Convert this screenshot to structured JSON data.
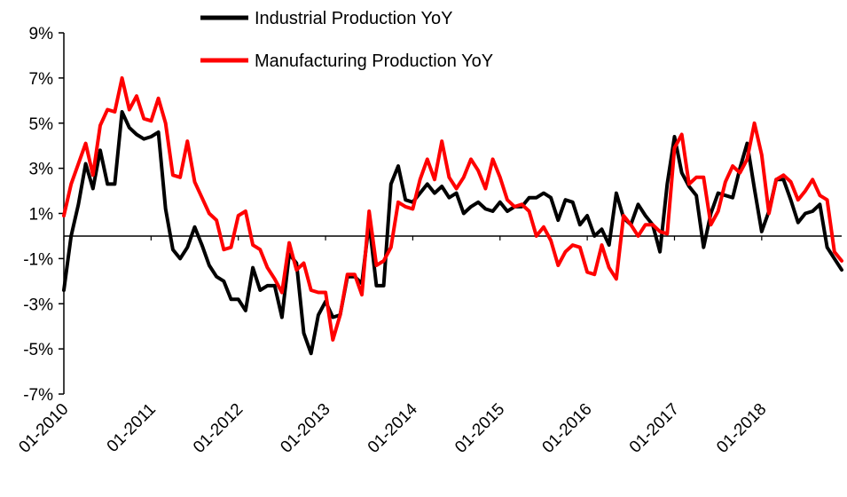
{
  "chart_data": {
    "type": "line",
    "title": "",
    "xlabel": "",
    "ylabel": "",
    "ylim": [
      -7,
      9
    ],
    "xlim": [
      "2010-01",
      "2018-10"
    ],
    "grid": false,
    "legend_position": "top-center",
    "yticks": [
      {
        "value": 9,
        "label": "9%"
      },
      {
        "value": 7,
        "label": "7%"
      },
      {
        "value": 5,
        "label": "5%"
      },
      {
        "value": 3,
        "label": "3%"
      },
      {
        "value": 1,
        "label": "1%"
      },
      {
        "value": -1,
        "label": "-1%"
      },
      {
        "value": -3,
        "label": "-3%"
      },
      {
        "value": -5,
        "label": "-5%"
      },
      {
        "value": -7,
        "label": "-7%"
      }
    ],
    "xticks": [
      {
        "date": "2010-01",
        "label": "01-2010"
      },
      {
        "date": "2011-01",
        "label": "01-2011"
      },
      {
        "date": "2012-01",
        "label": "01-2012"
      },
      {
        "date": "2013-01",
        "label": "01-2013"
      },
      {
        "date": "2014-01",
        "label": "01-2014"
      },
      {
        "date": "2015-01",
        "label": "01-2015"
      },
      {
        "date": "2016-01",
        "label": "01-2016"
      },
      {
        "date": "2017-01",
        "label": "01-2017"
      },
      {
        "date": "2018-01",
        "label": "01-2018"
      }
    ],
    "series": [
      {
        "name": "Industrial Production YoY",
        "color": "#000000",
        "points": [
          [
            "2010-01",
            -2.4
          ],
          [
            "2010-02",
            0.0
          ],
          [
            "2010-03",
            1.4
          ],
          [
            "2010-04",
            3.2
          ],
          [
            "2010-05",
            2.1
          ],
          [
            "2010-06",
            3.8
          ],
          [
            "2010-07",
            2.3
          ],
          [
            "2010-08",
            2.3
          ],
          [
            "2010-09",
            5.5
          ],
          [
            "2010-10",
            4.8
          ],
          [
            "2010-11",
            4.5
          ],
          [
            "2010-12",
            4.3
          ],
          [
            "2011-01",
            4.4
          ],
          [
            "2011-02",
            4.6
          ],
          [
            "2011-03",
            1.2
          ],
          [
            "2011-04",
            -0.6
          ],
          [
            "2011-05",
            -1.0
          ],
          [
            "2011-06",
            -0.5
          ],
          [
            "2011-07",
            0.4
          ],
          [
            "2011-08",
            -0.4
          ],
          [
            "2011-09",
            -1.3
          ],
          [
            "2011-10",
            -1.8
          ],
          [
            "2011-11",
            -2.0
          ],
          [
            "2011-12",
            -2.8
          ],
          [
            "2012-01",
            -2.8
          ],
          [
            "2012-02",
            -3.3
          ],
          [
            "2012-03",
            -1.4
          ],
          [
            "2012-04",
            -2.4
          ],
          [
            "2012-05",
            -2.2
          ],
          [
            "2012-06",
            -2.2
          ],
          [
            "2012-07",
            -3.6
          ],
          [
            "2012-08",
            -0.8
          ],
          [
            "2012-09",
            -1.2
          ],
          [
            "2012-10",
            -4.3
          ],
          [
            "2012-11",
            -5.2
          ],
          [
            "2012-12",
            -3.5
          ],
          [
            "2013-01",
            -2.9
          ],
          [
            "2013-02",
            -3.6
          ],
          [
            "2013-03",
            -3.5
          ],
          [
            "2013-04",
            -1.8
          ],
          [
            "2013-05",
            -1.8
          ],
          [
            "2013-06",
            -2.1
          ],
          [
            "2013-07",
            0.6
          ],
          [
            "2013-08",
            -2.2
          ],
          [
            "2013-09",
            -2.2
          ],
          [
            "2013-10",
            2.3
          ],
          [
            "2013-11",
            3.1
          ],
          [
            "2013-12",
            1.6
          ],
          [
            "2014-01",
            1.5
          ],
          [
            "2014-02",
            1.9
          ],
          [
            "2014-03",
            2.3
          ],
          [
            "2014-04",
            1.9
          ],
          [
            "2014-05",
            2.2
          ],
          [
            "2014-06",
            1.7
          ],
          [
            "2014-07",
            1.9
          ],
          [
            "2014-08",
            1.0
          ],
          [
            "2014-09",
            1.3
          ],
          [
            "2014-10",
            1.5
          ],
          [
            "2014-11",
            1.2
          ],
          [
            "2014-12",
            1.1
          ],
          [
            "2015-01",
            1.5
          ],
          [
            "2015-02",
            1.1
          ],
          [
            "2015-03",
            1.3
          ],
          [
            "2015-04",
            1.3
          ],
          [
            "2015-05",
            1.7
          ],
          [
            "2015-06",
            1.7
          ],
          [
            "2015-07",
            1.9
          ],
          [
            "2015-08",
            1.7
          ],
          [
            "2015-09",
            0.7
          ],
          [
            "2015-10",
            1.6
          ],
          [
            "2015-11",
            1.5
          ],
          [
            "2015-12",
            0.5
          ],
          [
            "2016-01",
            0.9
          ],
          [
            "2016-02",
            0.0
          ],
          [
            "2016-03",
            0.3
          ],
          [
            "2016-04",
            -0.4
          ],
          [
            "2016-05",
            1.9
          ],
          [
            "2016-06",
            0.8
          ],
          [
            "2016-07",
            0.5
          ],
          [
            "2016-08",
            1.4
          ],
          [
            "2016-09",
            0.9
          ],
          [
            "2016-10",
            0.5
          ],
          [
            "2016-11",
            -0.7
          ],
          [
            "2016-12",
            2.3
          ],
          [
            "2017-01",
            4.4
          ],
          [
            "2017-02",
            2.8
          ],
          [
            "2017-03",
            2.2
          ],
          [
            "2017-04",
            1.8
          ],
          [
            "2017-05",
            -0.5
          ],
          [
            "2017-06",
            1.0
          ],
          [
            "2017-07",
            1.9
          ],
          [
            "2017-08",
            1.8
          ],
          [
            "2017-09",
            1.7
          ],
          [
            "2017-10",
            3.0
          ],
          [
            "2017-11",
            4.1
          ],
          [
            "2017-12",
            2.1
          ],
          [
            "2018-01",
            0.2
          ],
          [
            "2018-02",
            1.1
          ],
          [
            "2018-03",
            2.5
          ],
          [
            "2018-04",
            2.5
          ],
          [
            "2018-05",
            1.6
          ],
          [
            "2018-06",
            0.6
          ],
          [
            "2018-07",
            1.0
          ],
          [
            "2018-08",
            1.1
          ],
          [
            "2018-09",
            1.4
          ],
          [
            "2018-10",
            -0.5
          ],
          [
            "2018-11",
            -1.0
          ],
          [
            "2018-12",
            -1.5
          ]
        ]
      },
      {
        "name": "Manufacturing Production YoY",
        "color": "#ff0000",
        "points": [
          [
            "2010-01",
            0.9
          ],
          [
            "2010-02",
            2.3
          ],
          [
            "2010-03",
            3.2
          ],
          [
            "2010-04",
            4.1
          ],
          [
            "2010-05",
            2.7
          ],
          [
            "2010-06",
            4.9
          ],
          [
            "2010-07",
            5.6
          ],
          [
            "2010-08",
            5.5
          ],
          [
            "2010-09",
            7.0
          ],
          [
            "2010-10",
            5.6
          ],
          [
            "2010-11",
            6.2
          ],
          [
            "2010-12",
            5.2
          ],
          [
            "2011-01",
            5.1
          ],
          [
            "2011-02",
            6.1
          ],
          [
            "2011-03",
            5.0
          ],
          [
            "2011-04",
            2.7
          ],
          [
            "2011-05",
            2.6
          ],
          [
            "2011-06",
            4.2
          ],
          [
            "2011-07",
            2.4
          ],
          [
            "2011-08",
            1.7
          ],
          [
            "2011-09",
            1.0
          ],
          [
            "2011-10",
            0.7
          ],
          [
            "2011-11",
            -0.6
          ],
          [
            "2011-12",
            -0.5
          ],
          [
            "2012-01",
            0.9
          ],
          [
            "2012-02",
            1.1
          ],
          [
            "2012-03",
            -0.4
          ],
          [
            "2012-04",
            -0.6
          ],
          [
            "2012-05",
            -1.4
          ],
          [
            "2012-06",
            -1.9
          ],
          [
            "2012-07",
            -2.5
          ],
          [
            "2012-08",
            -0.3
          ],
          [
            "2012-09",
            -1.5
          ],
          [
            "2012-10",
            -1.2
          ],
          [
            "2012-11",
            -2.4
          ],
          [
            "2012-12",
            -2.5
          ],
          [
            "2013-01",
            -2.5
          ],
          [
            "2013-02",
            -4.6
          ],
          [
            "2013-03",
            -3.5
          ],
          [
            "2013-04",
            -1.7
          ],
          [
            "2013-05",
            -1.7
          ],
          [
            "2013-06",
            -2.6
          ],
          [
            "2013-07",
            1.1
          ],
          [
            "2013-08",
            -1.3
          ],
          [
            "2013-09",
            -1.1
          ],
          [
            "2013-10",
            -0.5
          ],
          [
            "2013-11",
            1.5
          ],
          [
            "2013-12",
            1.3
          ],
          [
            "2014-01",
            1.2
          ],
          [
            "2014-02",
            2.5
          ],
          [
            "2014-03",
            3.4
          ],
          [
            "2014-04",
            2.5
          ],
          [
            "2014-05",
            4.2
          ],
          [
            "2014-06",
            2.6
          ],
          [
            "2014-07",
            2.1
          ],
          [
            "2014-08",
            2.6
          ],
          [
            "2014-09",
            3.4
          ],
          [
            "2014-10",
            2.9
          ],
          [
            "2014-11",
            2.1
          ],
          [
            "2014-12",
            3.4
          ],
          [
            "2015-01",
            2.6
          ],
          [
            "2015-02",
            1.6
          ],
          [
            "2015-03",
            1.3
          ],
          [
            "2015-04",
            1.4
          ],
          [
            "2015-05",
            1.1
          ],
          [
            "2015-06",
            0.0
          ],
          [
            "2015-07",
            0.4
          ],
          [
            "2015-08",
            -0.2
          ],
          [
            "2015-09",
            -1.3
          ],
          [
            "2015-10",
            -0.7
          ],
          [
            "2015-11",
            -0.4
          ],
          [
            "2015-12",
            -0.5
          ],
          [
            "2016-01",
            -1.6
          ],
          [
            "2016-02",
            -1.7
          ],
          [
            "2016-03",
            -0.4
          ],
          [
            "2016-04",
            -1.4
          ],
          [
            "2016-05",
            -1.9
          ],
          [
            "2016-06",
            0.9
          ],
          [
            "2016-07",
            0.5
          ],
          [
            "2016-08",
            0.0
          ],
          [
            "2016-09",
            0.5
          ],
          [
            "2016-10",
            0.5
          ],
          [
            "2016-11",
            0.2
          ],
          [
            "2016-12",
            0.1
          ],
          [
            "2017-01",
            3.9
          ],
          [
            "2017-02",
            4.5
          ],
          [
            "2017-03",
            2.3
          ],
          [
            "2017-04",
            2.6
          ],
          [
            "2017-05",
            2.6
          ],
          [
            "2017-06",
            0.5
          ],
          [
            "2017-07",
            1.1
          ],
          [
            "2017-08",
            2.4
          ],
          [
            "2017-09",
            3.1
          ],
          [
            "2017-10",
            2.8
          ],
          [
            "2017-11",
            3.4
          ],
          [
            "2017-12",
            5.0
          ],
          [
            "2018-01",
            3.6
          ],
          [
            "2018-02",
            1.0
          ],
          [
            "2018-03",
            2.5
          ],
          [
            "2018-04",
            2.7
          ],
          [
            "2018-05",
            2.4
          ],
          [
            "2018-06",
            1.6
          ],
          [
            "2018-07",
            2.0
          ],
          [
            "2018-08",
            2.5
          ],
          [
            "2018-09",
            1.8
          ],
          [
            "2018-10",
            1.6
          ],
          [
            "2018-11",
            -0.7
          ],
          [
            "2018-12",
            -1.1
          ]
        ]
      }
    ]
  }
}
